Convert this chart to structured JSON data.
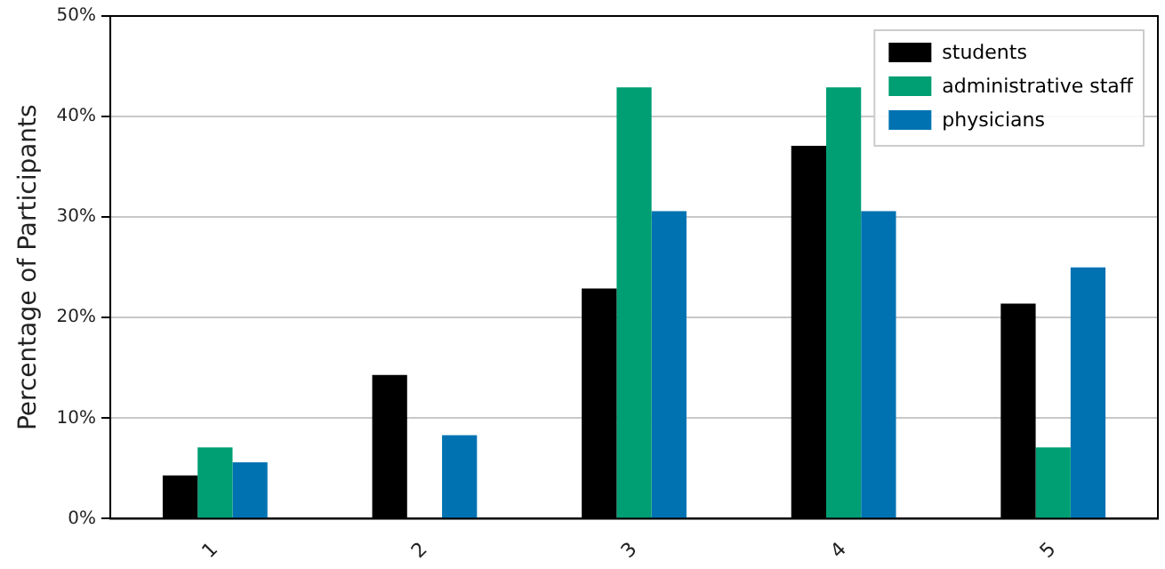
{
  "chart_data": {
    "type": "bar",
    "ylabel": "Percentage of Participants",
    "categories": [
      "1",
      "2",
      "3",
      "4",
      "5"
    ],
    "series": [
      {
        "name": "students",
        "color": "#000000",
        "values": [
          4.3,
          14.3,
          22.9,
          37.1,
          21.4
        ]
      },
      {
        "name": "administrative staff",
        "color": "#009e73",
        "values": [
          7.1,
          0,
          42.9,
          42.9,
          7.1
        ]
      },
      {
        "name": "physicians",
        "color": "#0072b2",
        "values": [
          5.6,
          8.3,
          30.6,
          30.6,
          25
        ]
      }
    ],
    "ylim": [
      0,
      50
    ],
    "yticks": [
      {
        "value": 0,
        "label": "0%"
      },
      {
        "value": 10,
        "label": "10%"
      },
      {
        "value": 20,
        "label": "20%"
      },
      {
        "value": 30,
        "label": "30%"
      },
      {
        "value": 40,
        "label": "40%"
      },
      {
        "value": 50,
        "label": "50%"
      }
    ],
    "grid": "y",
    "legend": "top right"
  }
}
